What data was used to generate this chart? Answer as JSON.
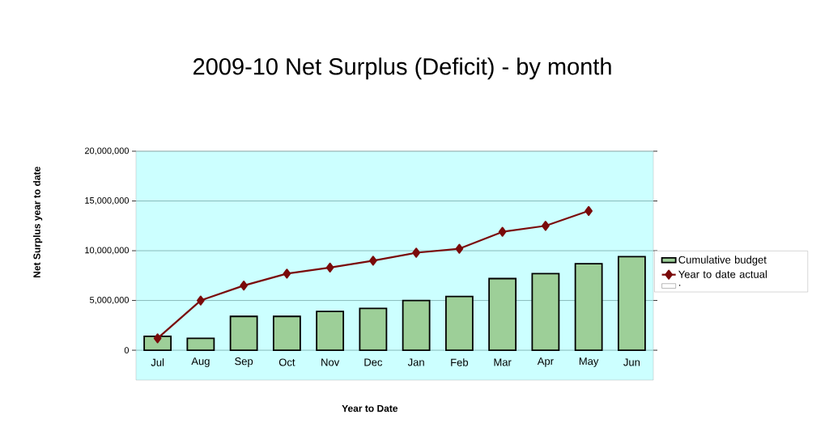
{
  "chart_data": {
    "type": "bar",
    "title": "2009-10 Net Surplus (Deficit) - by month",
    "xlabel": "Year to Date",
    "ylabel": "Net Surplus year to date",
    "categories": [
      "Jul",
      "Aug",
      "Sep",
      "Oct",
      "Nov",
      "Dec",
      "Jan",
      "Feb",
      "Mar",
      "Apr",
      "May",
      "Jun"
    ],
    "series": [
      {
        "name": "Cumulative budget",
        "color": "#9dcf98",
        "values": [
          1400000,
          1200000,
          3400000,
          3400000,
          3900000,
          4200000,
          5000000,
          5400000,
          7200000,
          7700000,
          8700000,
          9400000
        ]
      },
      {
        "name": "Year to date actual",
        "type": "line",
        "color": "#7a0a0a",
        "marker": "diamond",
        "values": [
          1200000,
          5000000,
          6500000,
          7700000,
          8300000,
          9000000,
          9800000,
          10200000,
          11900000,
          12500000,
          14000000,
          null
        ]
      },
      {
        "name": ".",
        "color": "#ffffff",
        "values": [
          null,
          null,
          null,
          null,
          null,
          null,
          null,
          null,
          null,
          null,
          null,
          null
        ]
      }
    ],
    "ylim": [
      -3000000,
      20000000
    ],
    "yticks": [
      0,
      {
        "value": 5000000,
        "label": "5,000,000"
      },
      {
        "value": 10000000,
        "label": "10,000,000"
      },
      {
        "value": 15000000,
        "label": "15,000,000"
      },
      {
        "value": 20000000,
        "label": "20,000,000"
      }
    ],
    "grid": "y",
    "legend": "right"
  }
}
